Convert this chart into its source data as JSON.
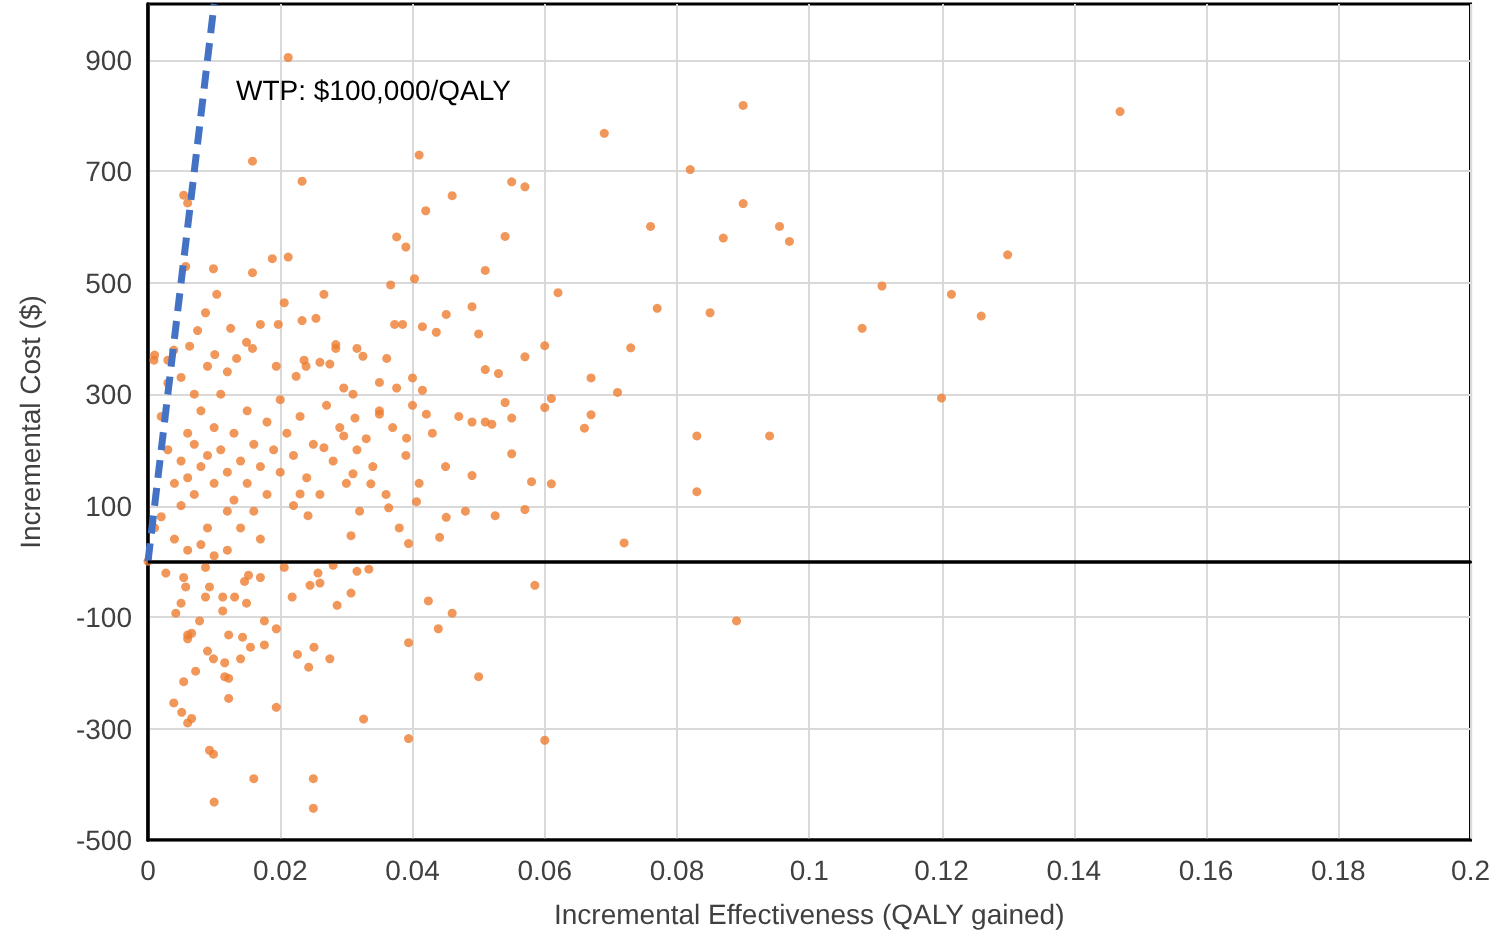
{
  "chart_data": {
    "type": "scatter",
    "xlabel": "Incremental Effectiveness (QALY gained)",
    "ylabel": "Incremental Cost ($)",
    "xlim": [
      0,
      0.2
    ],
    "xticks": [
      0,
      0.02,
      0.04,
      0.06,
      0.08,
      0.1,
      0.12,
      0.14,
      0.16,
      0.18,
      0.2
    ],
    "ylim": [
      -500,
      1000
    ],
    "yticks": [
      -500,
      -300,
      -100,
      100,
      300,
      500,
      700,
      900
    ],
    "grid": true,
    "marker": "circle",
    "ref_lines": [
      {
        "axis": "y",
        "value": 0,
        "color": "#000000"
      }
    ],
    "annotations": [
      "WTP: $100,000/QALY"
    ],
    "series": [
      {
        "color": "#ed7d31",
        "x": [
          0.041,
          0.042,
          0.046,
          0.09,
          0.147,
          0.069,
          0.082,
          0.055,
          0.057,
          0.09,
          0.076,
          0.0955,
          0.087,
          0.097,
          0.054,
          0.051,
          0.13,
          0.111,
          0.1215,
          0.126,
          0.108,
          0.062,
          0.077,
          0.085,
          0.049,
          0.05,
          0.06,
          0.073,
          0.057,
          0.051,
          0.053,
          0.067,
          0.071,
          0.12,
          0.054,
          0.061,
          0.06,
          0.067,
          0.055,
          0.066,
          0.049,
          0.051,
          0.052,
          0.083,
          0.094,
          0.055,
          0.049,
          0.058,
          0.061,
          0.083,
          0.0525,
          0.057,
          0.072,
          0.0585,
          0.089,
          0.05,
          0.06,
          0.01,
          0.025,
          0.016,
          0.025,
          0.0093,
          0.0099,
          0.0194,
          0.0326,
          0.0394,
          0.0039,
          0.0051,
          0.006,
          0.0066,
          0.0122,
          0.0054,
          0.0072,
          0.0116,
          0.0122,
          0.009,
          0.0099,
          0.0116,
          0.014,
          0.0243,
          0.0226,
          0.0251,
          0.0275,
          0.0394,
          0.0424,
          0.046,
          0.0439,
          0.0286,
          0.0307,
          0.0218,
          0.0194,
          0.0176,
          0.0176,
          0.0155,
          0.0143,
          0.0122,
          0.0066,
          0.006,
          0.006,
          0.0042,
          0.005,
          0.0078,
          0.0113,
          0.0113,
          0.0131,
          0.0149,
          0.0152,
          0.0093,
          0.0087,
          0.0057,
          0.0027,
          0.0054,
          0.0087,
          0.0206,
          0.0245,
          0.026,
          0.0257,
          0.028,
          0.0316,
          0.0334,
          0.017,
          0.0146,
          0,
          0.0212,
          0.0158,
          0.0233,
          0.0054,
          0.006,
          0.0057,
          0.0099,
          0.0158,
          0.0188,
          0.0212,
          0.0104,
          0.0266,
          0.0376,
          0.039,
          0.0367,
          0.0403,
          0.0373,
          0.0385,
          0.0415,
          0.0436,
          0.0451,
          0.0316,
          0.0284,
          0.0275,
          0.0236,
          0.0239,
          0.0039,
          0.003,
          0.0009,
          0.0063,
          0.0075,
          0.0087,
          0.0125,
          0.0149,
          0.017,
          0.0197,
          0.0206,
          0.0233,
          0.0254,
          0.0284,
          0.0325,
          0.0361,
          0.0376,
          0.035,
          0.04,
          0.0415,
          0.035,
          0.0391,
          0.0421,
          0.0406,
          0.0451,
          0.0441,
          0.0394,
          0.0364,
          0.0337,
          0.0316,
          0.0296,
          0.031,
          0.0307,
          0.0242,
          0.023,
          0.0266,
          0.0313,
          0.0296,
          0.026,
          0.0224,
          0.0194,
          0.0158,
          0.0134,
          0.0101,
          0.002,
          0.003,
          0.004,
          0.005,
          0.005,
          0.006,
          0.006,
          0.007,
          0.007,
          0.008,
          0.008,
          0.009,
          0.009,
          0.01,
          0.01,
          0.011,
          0.011,
          0.012,
          0.012,
          0.013,
          0.013,
          0.014,
          0.015,
          0.015,
          0.016,
          0.017,
          0.017,
          0.018,
          0.018,
          0.019,
          0.02,
          0.02,
          0.021,
          0.022,
          0.022,
          0.023,
          0.024,
          0.025,
          0.026,
          0.027,
          0.028,
          0.029,
          0.03,
          0.031,
          0.032,
          0.033,
          0.034,
          0.035,
          0.036,
          0.037,
          0.038,
          0.039,
          0.04,
          0.041,
          0.043,
          0.045,
          0.047,
          0.048,
          0.004,
          0.006,
          0.008,
          0.01,
          0.012,
          0.014,
          0.016,
          0.003,
          0.005,
          0.007,
          0.009,
          0.012,
          0.002,
          0.001,
          0.001
        ],
        "values": [
          729,
          629,
          656,
          818,
          807,
          768,
          703,
          681,
          672,
          642,
          601,
          601,
          580,
          574,
          583,
          522,
          550,
          494,
          479,
          440,
          418,
          482,
          454,
          446,
          457,
          408,
          387,
          383,
          367,
          344,
          337,
          329,
          303,
          293,
          285,
          292,
          276,
          263,
          257,
          239,
          250,
          250,
          246,
          225,
          225,
          193,
          154,
          143,
          139,
          125,
          82,
          93,
          33,
          -43,
          -107,
          -207,
          -321,
          -432,
          -443,
          -390,
          -390,
          -339,
          -346,
          -262,
          -283,
          -318,
          -254,
          -271,
          -290,
          -282,
          -246,
          -216,
          -197,
          -207,
          -210,
          -161,
          -175,
          -182,
          -175,
          -190,
          -167,
          -154,
          -175,
          -146,
          -71,
          -93,
          -121,
          -79,
          -57,
          -64,
          -121,
          -107,
          -150,
          -154,
          -136,
          -132,
          -129,
          -139,
          -132,
          -93,
          -75,
          -107,
          -89,
          -64,
          -64,
          -75,
          -25,
          -46,
          -64,
          -46,
          -21,
          -29,
          -11,
          -11,
          -43,
          -39,
          -21,
          -7,
          -18,
          -14,
          -29,
          -36,
          0,
          904,
          718,
          682,
          657,
          643,
          529,
          525,
          518,
          543,
          546,
          479,
          479,
          582,
          564,
          496,
          507,
          425,
          425,
          421,
          411,
          443,
          382,
          389,
          354,
          361,
          350,
          379,
          361,
          361,
          386,
          414,
          446,
          418,
          393,
          425,
          425,
          464,
          432,
          436,
          382,
          368,
          364,
          311,
          321,
          329,
          307,
          264,
          221,
          264,
          107,
          79,
          43,
          32,
          96,
          139,
          200,
          225,
          157,
          46,
          82,
          121,
          204,
          257,
          311,
          357,
          332,
          350,
          382,
          364,
          371,
          260,
          200,
          140,
          180,
          100,
          230,
          150,
          210,
          120,
          270,
          170,
          190,
          60,
          240,
          140,
          300,
          200,
          160,
          90,
          230,
          110,
          180,
          270,
          140,
          210,
          170,
          40,
          250,
          120,
          200,
          290,
          160,
          230,
          100,
          190,
          260,
          150,
          210,
          120,
          280,
          180,
          240,
          140,
          300,
          90,
          220,
          170,
          270,
          120,
          240,
          60,
          190,
          280,
          140,
          230,
          170,
          260,
          90,
          40,
          20,
          30,
          10,
          20,
          60,
          90,
          320,
          330,
          300,
          350,
          340,
          80,
          60,
          370
        ]
      },
      {
        "type": "line",
        "color": "#4472c4",
        "x": [
          0,
          0.01
        ],
        "values": [
          0,
          1000
        ],
        "marker": "none",
        "line_style": "dashed"
      }
    ]
  }
}
